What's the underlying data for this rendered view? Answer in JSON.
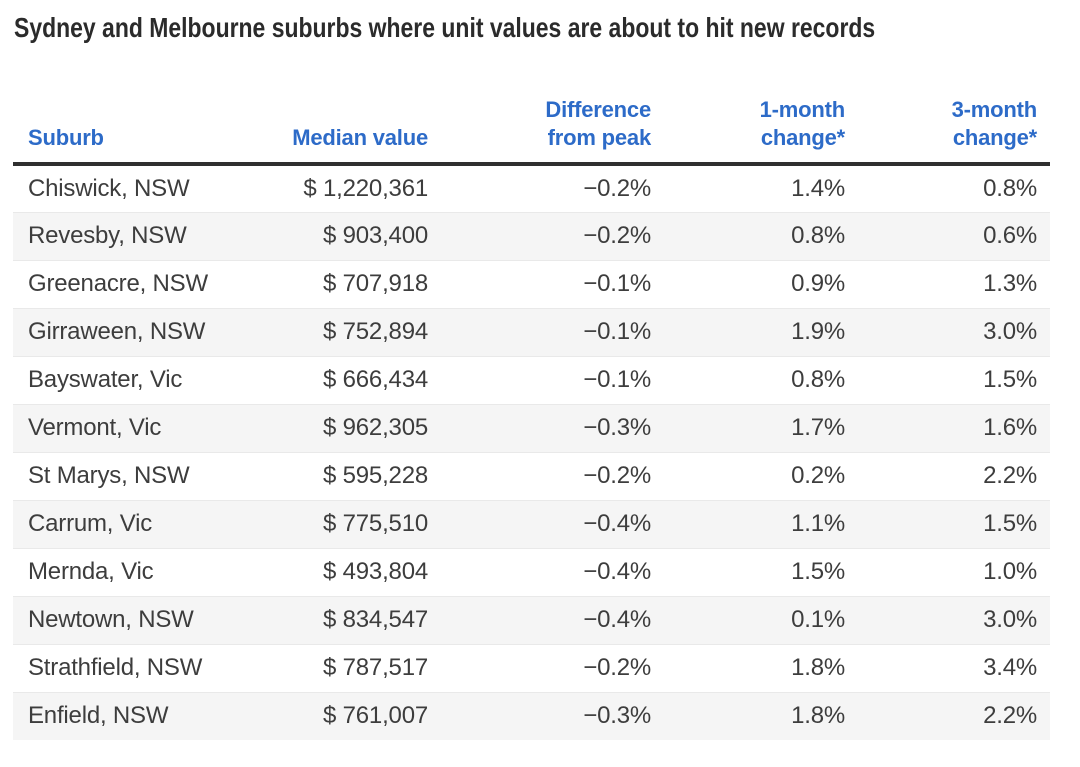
{
  "title": "Sydney and Melbourne suburbs where unit values are about to hit new records",
  "colors": {
    "accent_blue": "#2d6bc8",
    "title_text": "#2b2b2b",
    "body_text": "#3d3d3d",
    "rule_dark": "#2f2f2f",
    "row_alt_bg": "#f5f5f5",
    "row_border": "#e9e9e9"
  },
  "table": {
    "columns": [
      {
        "line1": "",
        "line2": "Suburb"
      },
      {
        "line1": "",
        "line2": "Median value"
      },
      {
        "line1": "Difference",
        "line2": "from peak"
      },
      {
        "line1": "1-month",
        "line2": "change*"
      },
      {
        "line1": "3-month",
        "line2": "change*"
      }
    ],
    "rows": [
      {
        "suburb": "Chiswick, NSW",
        "median_value": "$ 1,220,361",
        "difference_from_peak": "−0.2%",
        "one_month_change": "1.4%",
        "three_month_change": "0.8%"
      },
      {
        "suburb": "Revesby, NSW",
        "median_value": "$ 903,400",
        "difference_from_peak": "−0.2%",
        "one_month_change": "0.8%",
        "three_month_change": "0.6%"
      },
      {
        "suburb": "Greenacre, NSW",
        "median_value": "$ 707,918",
        "difference_from_peak": "−0.1%",
        "one_month_change": "0.9%",
        "three_month_change": "1.3%"
      },
      {
        "suburb": "Girraween, NSW",
        "median_value": "$ 752,894",
        "difference_from_peak": "−0.1%",
        "one_month_change": "1.9%",
        "three_month_change": "3.0%"
      },
      {
        "suburb": "Bayswater, Vic",
        "median_value": "$ 666,434",
        "difference_from_peak": "−0.1%",
        "one_month_change": "0.8%",
        "three_month_change": "1.5%"
      },
      {
        "suburb": "Vermont, Vic",
        "median_value": "$ 962,305",
        "difference_from_peak": "−0.3%",
        "one_month_change": "1.7%",
        "three_month_change": "1.6%"
      },
      {
        "suburb": "St Marys, NSW",
        "median_value": "$ 595,228",
        "difference_from_peak": "−0.2%",
        "one_month_change": "0.2%",
        "three_month_change": "2.2%"
      },
      {
        "suburb": "Carrum, Vic",
        "median_value": "$ 775,510",
        "difference_from_peak": "−0.4%",
        "one_month_change": "1.1%",
        "three_month_change": "1.5%"
      },
      {
        "suburb": "Mernda, Vic",
        "median_value": "$ 493,804",
        "difference_from_peak": "−0.4%",
        "one_month_change": "1.5%",
        "three_month_change": "1.0%"
      },
      {
        "suburb": "Newtown, NSW",
        "median_value": "$ 834,547",
        "difference_from_peak": "−0.4%",
        "one_month_change": "0.1%",
        "three_month_change": "3.0%"
      },
      {
        "suburb": "Strathfield, NSW",
        "median_value": "$ 787,517",
        "difference_from_peak": "−0.2%",
        "one_month_change": "1.8%",
        "three_month_change": "3.4%"
      },
      {
        "suburb": "Enfield, NSW",
        "median_value": "$ 761,007",
        "difference_from_peak": "−0.3%",
        "one_month_change": "1.8%",
        "three_month_change": "2.2%"
      }
    ]
  },
  "chart_data": {
    "type": "table",
    "title": "Sydney and Melbourne suburbs where unit values are about to hit new records",
    "columns": [
      "Suburb",
      "Median value",
      "Difference from peak",
      "1-month change*",
      "3-month change*"
    ],
    "rows": [
      [
        "Chiswick, NSW",
        1220361,
        -0.2,
        1.4,
        0.8
      ],
      [
        "Revesby, NSW",
        903400,
        -0.2,
        0.8,
        0.6
      ],
      [
        "Greenacre, NSW",
        707918,
        -0.1,
        0.9,
        1.3
      ],
      [
        "Girraween, NSW",
        752894,
        -0.1,
        1.9,
        3.0
      ],
      [
        "Bayswater, Vic",
        666434,
        -0.1,
        0.8,
        1.5
      ],
      [
        "Vermont, Vic",
        962305,
        -0.3,
        1.7,
        1.6
      ],
      [
        "St Marys, NSW",
        595228,
        -0.2,
        0.2,
        2.2
      ],
      [
        "Carrum, Vic",
        775510,
        -0.4,
        1.1,
        1.5
      ],
      [
        "Mernda, Vic",
        493804,
        -0.4,
        1.5,
        1.0
      ],
      [
        "Newtown, NSW",
        834547,
        -0.4,
        0.1,
        3.0
      ],
      [
        "Strathfield, NSW",
        787517,
        -0.2,
        1.8,
        3.4
      ],
      [
        "Enfield, NSW",
        761007,
        -0.3,
        1.8,
        2.2
      ]
    ]
  }
}
